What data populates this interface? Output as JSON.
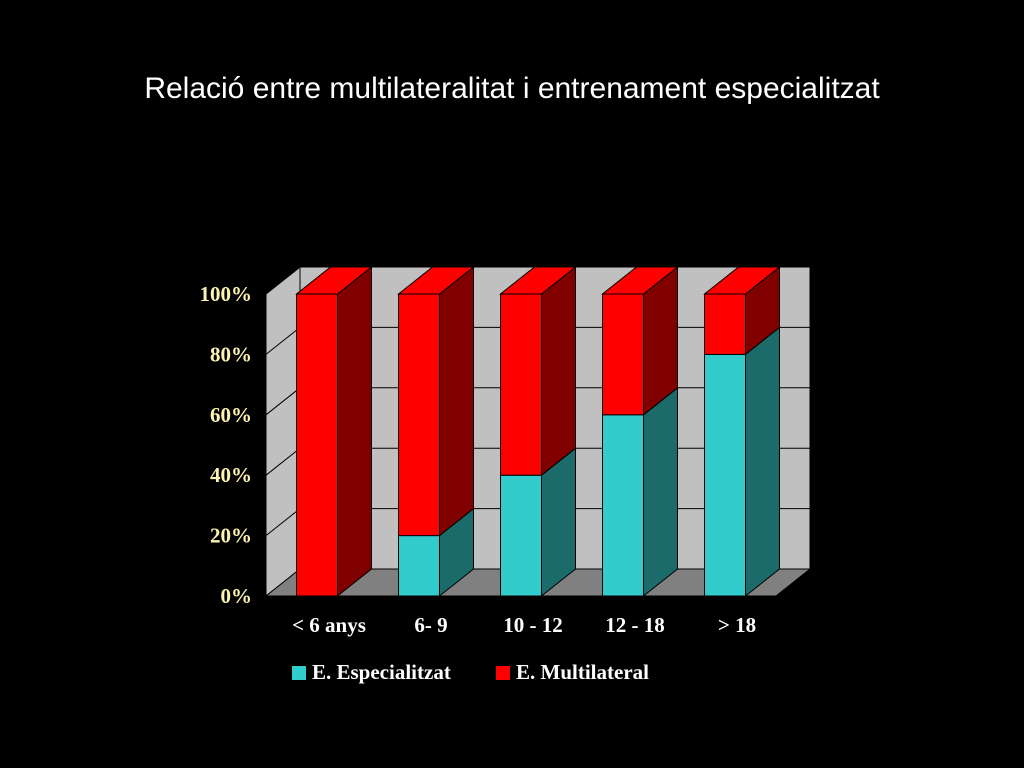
{
  "slide": {
    "title": "Relació entre multilateralitat i entrenament especialitzat"
  },
  "colors": {
    "background": "#000000",
    "text_white": "#ffffff",
    "tick_text": "#fff3b0",
    "wall": "#c0c0c0",
    "floor": "#808080",
    "grid": "#000000",
    "especialitzat_front": "#33cccc",
    "especialitzat_side": "#1c6b6b",
    "multilateral_front": "#ff0000",
    "multilateral_side": "#800000"
  },
  "chart_data": {
    "type": "bar",
    "stacked": "percent",
    "three_d": true,
    "categories": [
      "< 6 anys",
      "6- 9",
      "10 - 12",
      "12 - 18",
      "> 18"
    ],
    "series": [
      {
        "name": "E. Especialitzat",
        "values": [
          0,
          20,
          40,
          60,
          80
        ]
      },
      {
        "name": "E. Multilateral",
        "values": [
          100,
          80,
          60,
          40,
          20
        ]
      }
    ],
    "ylim": [
      0,
      100
    ],
    "yticks": [
      "0%",
      "20%",
      "40%",
      "60%",
      "80%",
      "100%"
    ],
    "grid": true,
    "legend": "bottom"
  }
}
